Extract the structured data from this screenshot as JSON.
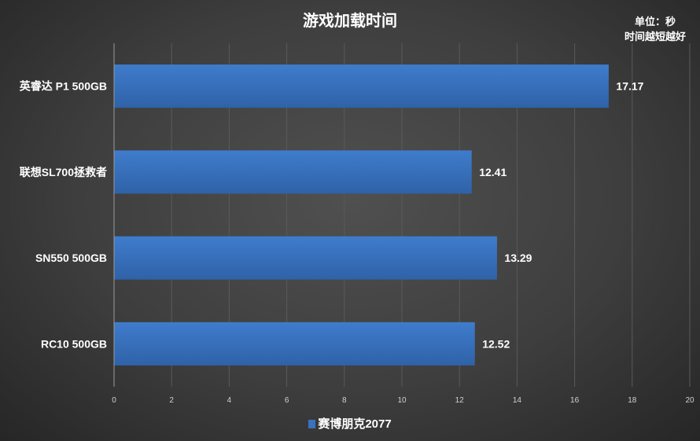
{
  "chart_data": {
    "type": "bar",
    "orientation": "horizontal",
    "title": "游戏加载时间",
    "annotation": [
      "单位：秒",
      "时间越短越好"
    ],
    "categories": [
      "英睿达 P1 500GB",
      "联想SL700拯救者",
      "SN550 500GB",
      "RC10 500GB"
    ],
    "series": [
      {
        "name": "赛博朋克2077",
        "values": [
          17.17,
          12.41,
          13.29,
          12.52
        ],
        "color": "#3a72c0"
      }
    ],
    "xlim": [
      0,
      20
    ],
    "xticks": [
      "0",
      "2",
      "4",
      "6",
      "8",
      "10",
      "12",
      "14",
      "16",
      "18",
      "20"
    ],
    "grid": true,
    "legend_position": "bottom"
  }
}
